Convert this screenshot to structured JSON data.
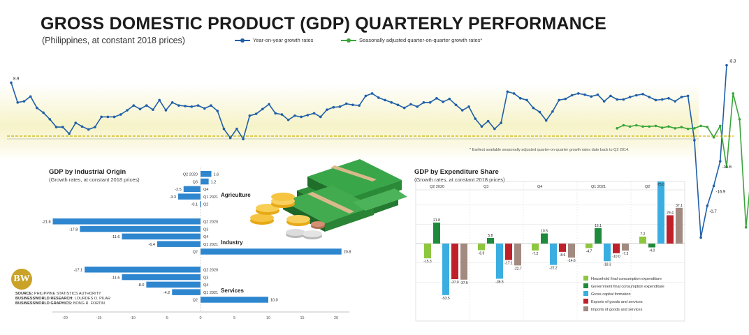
{
  "header": {
    "title": "GROSS DOMESTIC PRODUCT (GDP) QUARTERLY PERFORMANCE",
    "subtitle": "(Philippines, at constant 2018 prices)",
    "legend_yoy": "Year-on-year growth rates",
    "legend_qoq": "Seasonally adjusted quarter-on-quarter growth rates*",
    "footnote": "* Earliest available seasonally adjusted quarter-on-quarter growth rates date back to Q2 2014."
  },
  "colors": {
    "yoy": "#1f5fa8",
    "qoq": "#3aa53a",
    "bar_blue": "#2e86cf",
    "baseline": "#c9b400"
  },
  "credits": {
    "source_label": "SOURCE:",
    "source": "PHILIPPINE STATISTICS AUTHORITY",
    "research_label": "BUSINESSWORLD RESEARCH:",
    "research": "LOURDES O. PILAR",
    "graphics_label": "BUSINESSWORLD GRAPHICS:",
    "graphics": "BONG R. FORTIN"
  },
  "logo_text": "BW",
  "chart_data": [
    {
      "type": "line",
      "id": "main",
      "series": [
        {
          "name": "Year-on-year growth rates",
          "values": [
            8.9,
            5.6,
            5.8,
            6.6,
            4.7,
            3.9,
            2.8,
            1.5,
            1.5,
            0.4,
            2.2,
            1.6,
            1.1,
            1.5,
            3.2,
            3.2,
            3.2,
            3.6,
            4.3,
            5.1,
            4.5,
            5.1,
            4.4,
            6.0,
            4.3,
            5.6,
            5.1,
            5.0,
            4.9,
            5.1,
            4.6,
            5.1,
            4.2,
            1.2,
            -0.3,
            1.2,
            -0.5,
            3.4,
            3.7,
            4.5,
            5.3,
            3.8,
            3.6,
            2.7,
            3.4,
            3.2,
            3.5,
            3.8,
            3.2,
            4.4,
            4.8,
            4.9,
            5.4,
            5.2,
            5.1,
            6.7,
            7.1,
            6.4,
            6.0,
            5.6,
            5.2,
            4.7,
            5.3,
            4.9,
            5.6,
            5.6,
            6.3,
            5.7,
            6.2,
            5.2,
            4.3,
            4.9,
            2.9,
            1.6,
            2.5,
            1.2,
            2.2,
            7.4,
            7.1,
            6.3,
            6.0,
            4.7,
            4.0,
            2.6,
            4.1,
            6.0,
            6.2,
            6.8,
            7.1,
            6.9,
            6.6,
            6.9,
            5.8,
            6.7,
            6.1,
            6.1,
            6.5,
            6.8,
            7.0,
            6.5,
            6.0,
            6.1,
            6.3,
            5.8,
            6.5,
            6.7,
            -0.7,
            -16.9,
            -11.6,
            -8.3,
            -4.2,
            11.8
          ],
          "shown_labels": [
            [
              0,
              "8.9"
            ],
            [
              114,
              "11.8"
            ],
            [
              108,
              "-0.7"
            ],
            [
              109,
              "-16.9"
            ],
            [
              110,
              "-11.6"
            ],
            [
              111,
              "-8.3"
            ],
            [
              112,
              "-4.2"
            ]
          ]
        },
        {
          "name": "Seasonally adjusted quarter-on-quarter growth rates*",
          "start_index": 94,
          "values": [
            1.3,
            1.8,
            1.6,
            1.8,
            1.6,
            1.6,
            1.7,
            1.4,
            1.6,
            1.3,
            1.5,
            1.2,
            1.3,
            1.7,
            1.5,
            -0.2,
            1.7,
            -5.1,
            7.1,
            2.8,
            -15.2,
            -4.4,
            2.0
          ]
        }
      ]
    },
    {
      "type": "bar",
      "id": "origin",
      "title": "GDP by Industrial Origin",
      "subtitle": "(Growth rates, at constant 2018 prices)",
      "categories": [
        "Q2 2020",
        "Q3",
        "Q4",
        "Q1 2021",
        "Q2"
      ],
      "groups": [
        "Agriculture",
        "Industry",
        "Services"
      ],
      "series": [
        {
          "name": "Agriculture",
          "values": [
            1.6,
            1.2,
            -2.5,
            -3.3,
            -0.1
          ]
        },
        {
          "name": "Industry",
          "values": [
            -21.8,
            -17.8,
            -11.6,
            -6.4,
            20.8
          ]
        },
        {
          "name": "Services",
          "values": [
            -17.1,
            -11.6,
            -8.0,
            -4.2,
            10.0
          ]
        }
      ],
      "value_labels": [
        "1.6",
        "1.2",
        "-2.5",
        "-3.3",
        "-0.1",
        "-21.8",
        "-17.8",
        "-11.6",
        "-6.4",
        "20.8",
        "-17.1",
        "-11.6",
        "-8.0",
        "-4.2",
        "10.0"
      ],
      "xticks": [
        "-20",
        "-15",
        "-10",
        "-5",
        "0",
        "5",
        "10",
        "15",
        "20"
      ],
      "xlim": [
        -22,
        22
      ]
    },
    {
      "type": "bar",
      "id": "expenditure",
      "title": "GDP by Expenditure Share",
      "subtitle": "(Growth rates, at constant 2018 prices)",
      "categories": [
        "Q2 2020",
        "Q3",
        "Q4",
        "Q1 2021",
        "Q2"
      ],
      "series": [
        {
          "name": "Household final consumption expenditure",
          "color": "#8dc63f",
          "values": [
            -15.3,
            -6.9,
            -7.2,
            -4.7,
            7.2
          ]
        },
        {
          "name": "Government final consumption expenditure",
          "color": "#1e8a3c",
          "values": [
            21.8,
            5.8,
            10.5,
            16.1,
            -4.0
          ]
        },
        {
          "name": "Gross capital formation",
          "color": "#3aaee0",
          "values": [
            -53.5,
            -36.5,
            -22.2,
            -18.3,
            75.0
          ]
        },
        {
          "name": "Exports of goods and services",
          "color": "#c0202a",
          "values": [
            -37.0,
            -17.1,
            -8.6,
            -10.0,
            29.4
          ]
        },
        {
          "name": "Imports of goods and services",
          "color": "#a28a80",
          "values": [
            -37.5,
            -22.7,
            -14.6,
            -7.3,
            37.1
          ]
        }
      ],
      "value_labels": [
        "-15.3",
        "21.8",
        "-53.5",
        "-37.0",
        "-37.5",
        "-6.9",
        "5.8",
        "-36.5",
        "-17.1",
        "-22.7",
        "-7.2",
        "10.5",
        "-22.2",
        "-8.6",
        "-14.6",
        "-4.7",
        "16.1",
        "-18.3",
        "-10.0",
        "-7.3",
        "7.2",
        "-4.0",
        "75.0",
        "29.4",
        "37.1"
      ]
    }
  ]
}
